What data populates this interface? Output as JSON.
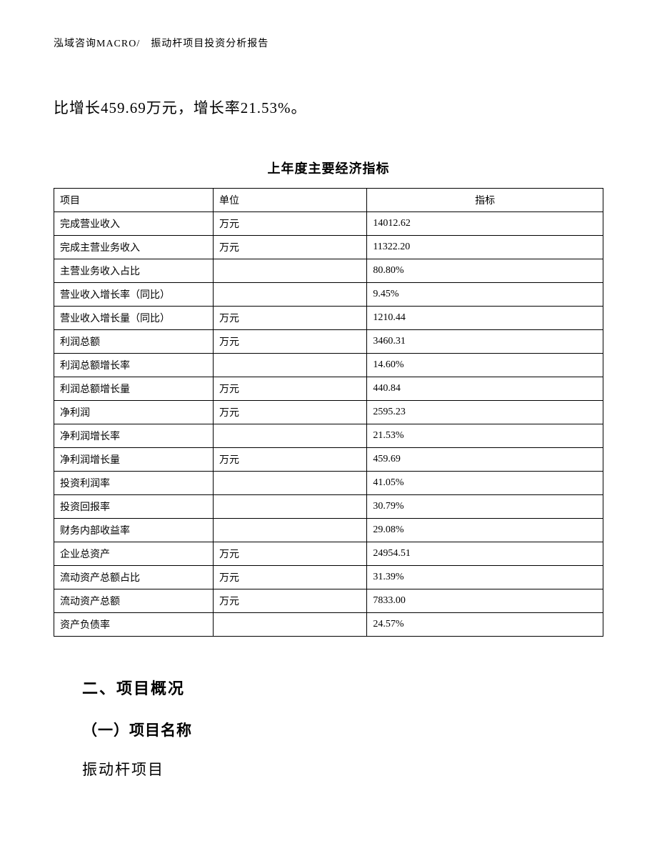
{
  "header": {
    "text": "泓域咨询MACRO/　振动杆项目投资分析报告"
  },
  "intro": {
    "text": "比增长459.69万元，增长率21.53%。"
  },
  "table": {
    "title": "上年度主要经济指标",
    "columns": [
      "项目",
      "单位",
      "指标"
    ],
    "rows": [
      [
        "完成营业收入",
        "万元",
        "14012.62"
      ],
      [
        "完成主营业务收入",
        "万元",
        "11322.20"
      ],
      [
        "主营业务收入占比",
        "",
        "80.80%"
      ],
      [
        "营业收入增长率（同比）",
        "",
        "9.45%"
      ],
      [
        "营业收入增长量（同比）",
        "万元",
        "1210.44"
      ],
      [
        "利润总额",
        "万元",
        "3460.31"
      ],
      [
        "利润总额增长率",
        "",
        "14.60%"
      ],
      [
        "利润总额增长量",
        "万元",
        "440.84"
      ],
      [
        "净利润",
        "万元",
        "2595.23"
      ],
      [
        "净利润增长率",
        "",
        "21.53%"
      ],
      [
        "净利润增长量",
        "万元",
        "459.69"
      ],
      [
        "投资利润率",
        "",
        "41.05%"
      ],
      [
        "投资回报率",
        "",
        "30.79%"
      ],
      [
        "财务内部收益率",
        "",
        "29.08%"
      ],
      [
        "企业总资产",
        "万元",
        "24954.51"
      ],
      [
        "流动资产总额占比",
        "万元",
        "31.39%"
      ],
      [
        "流动资产总额",
        "万元",
        "7833.00"
      ],
      [
        "资产负债率",
        "",
        "24.57%"
      ]
    ]
  },
  "section": {
    "heading": "二、项目概况",
    "subheading": "（一）项目名称",
    "body": "振动杆项目"
  }
}
